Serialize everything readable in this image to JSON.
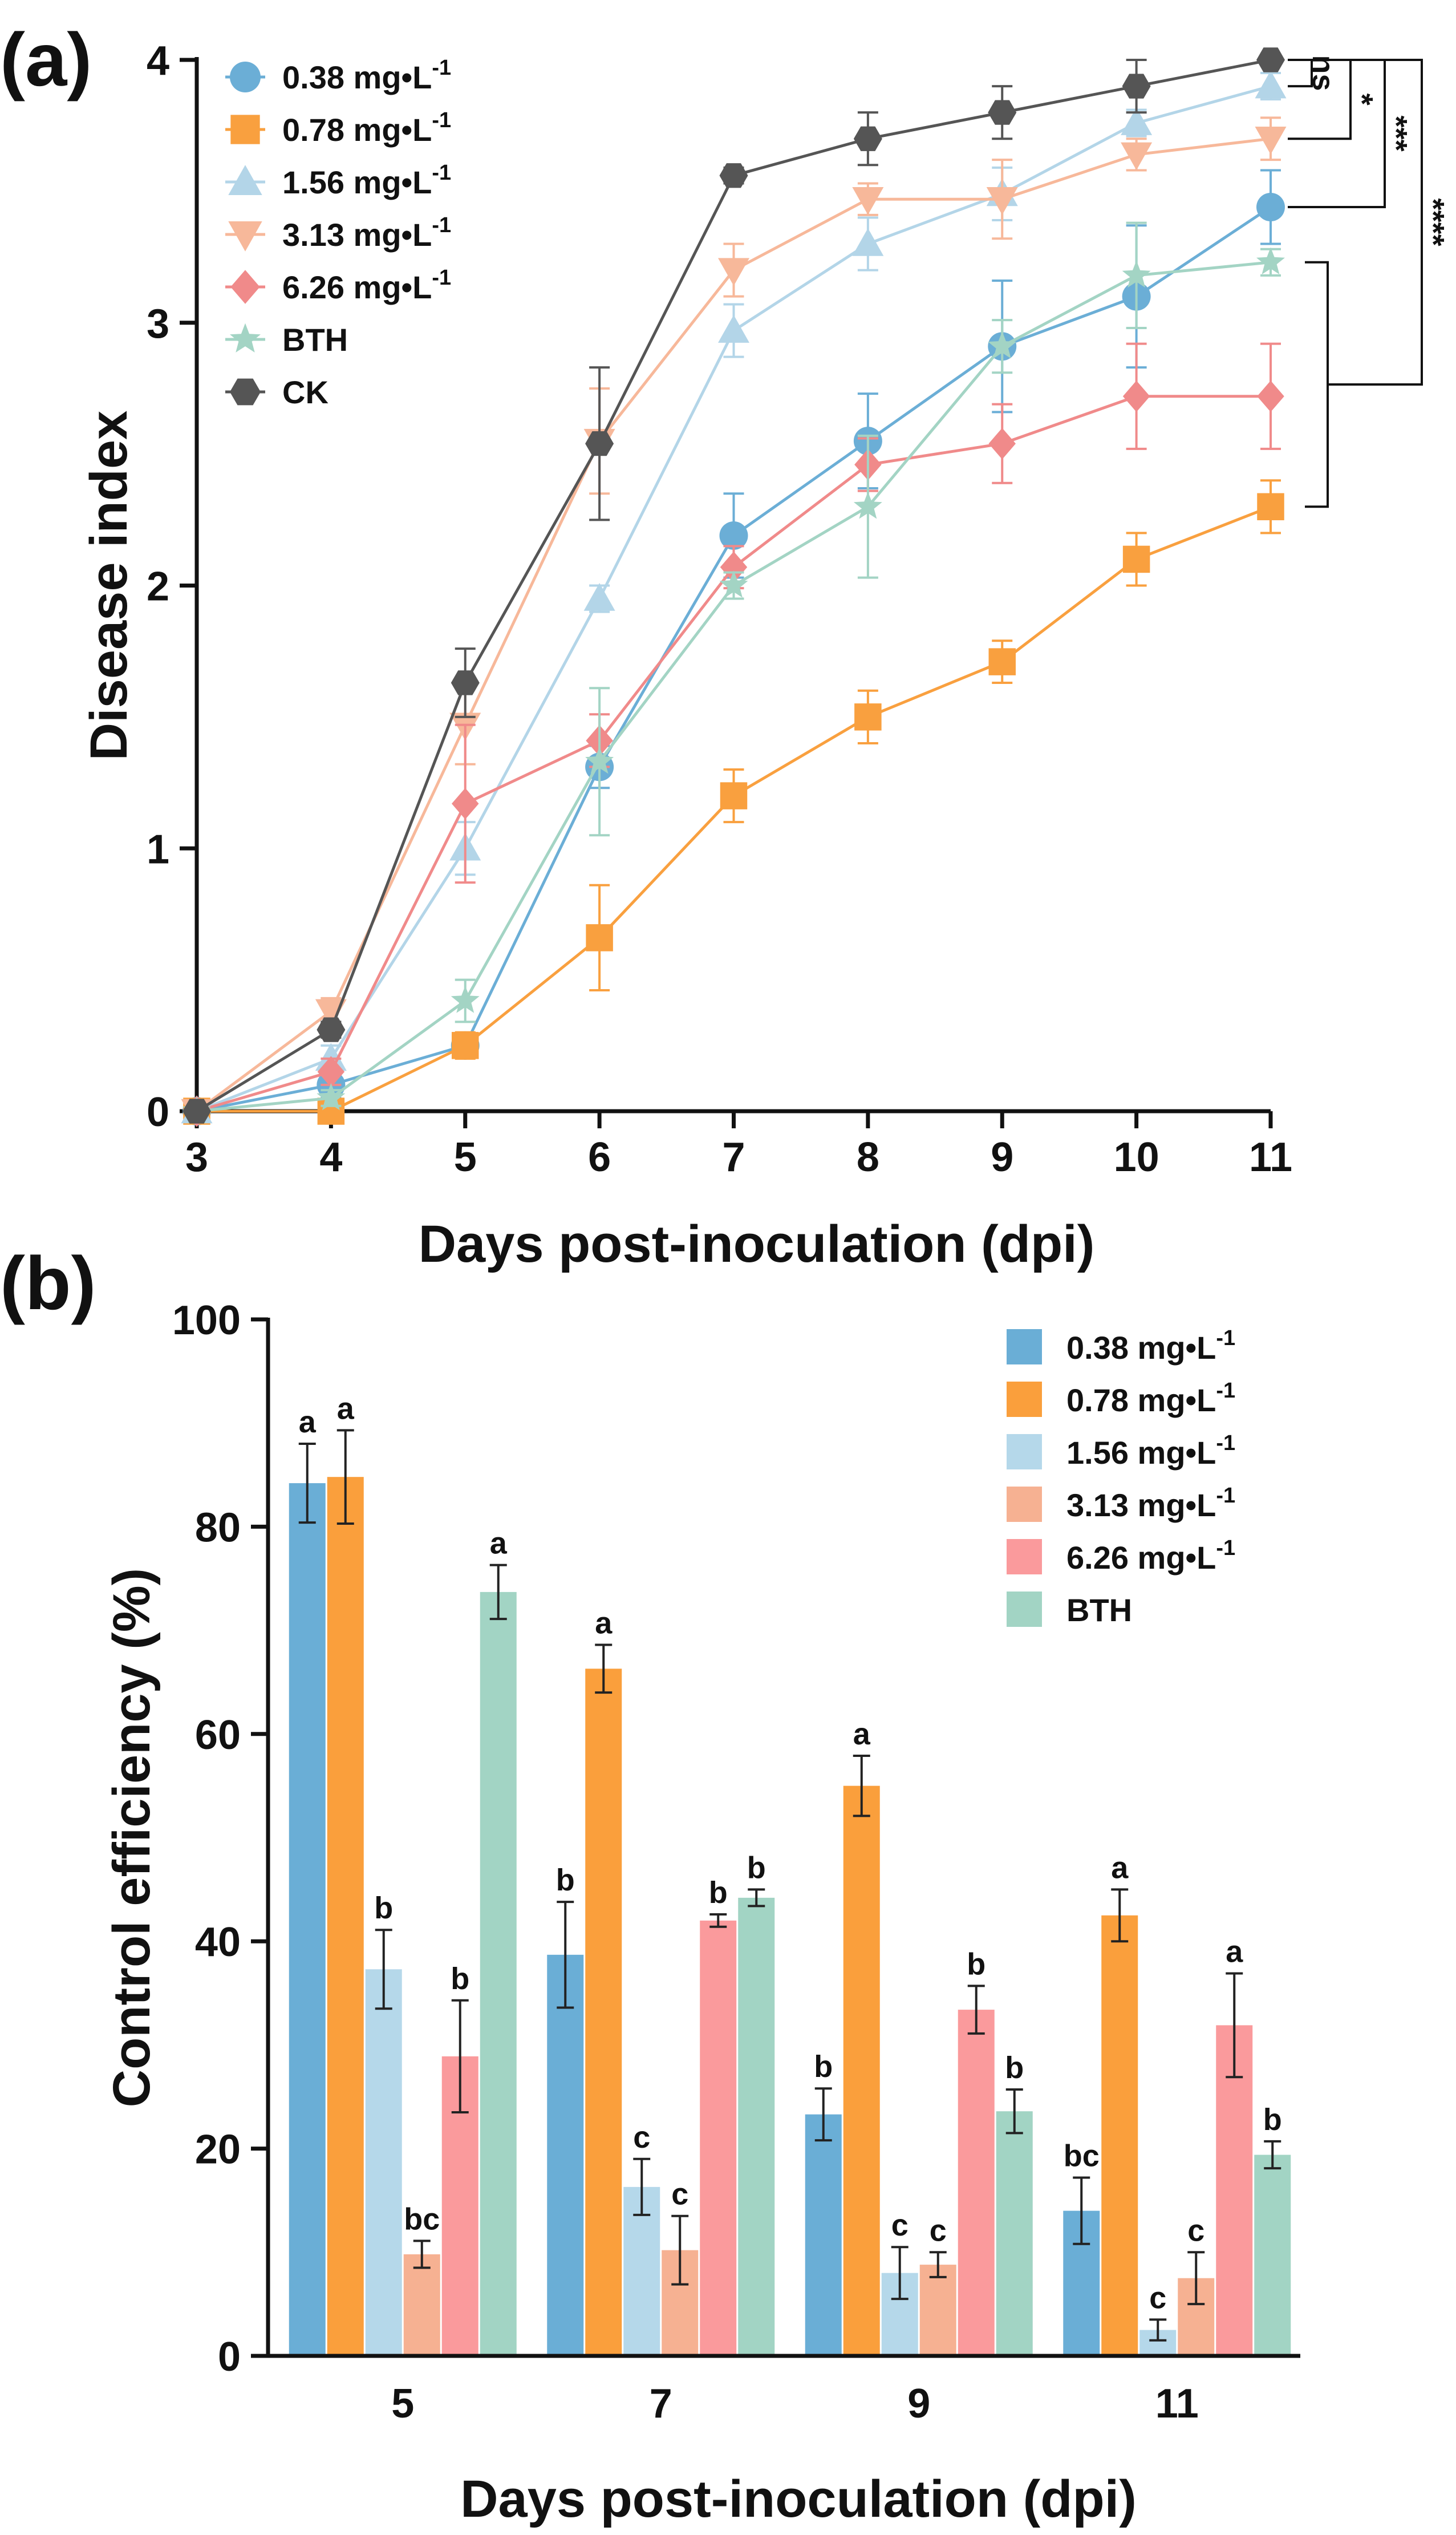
{
  "panel_a": {
    "label": "(a)",
    "chart_data": {
      "type": "line",
      "title": "",
      "xlabel": "Days post-inoculation (dpi)",
      "ylabel": "Disease index",
      "x": [
        3,
        4,
        5,
        6,
        7,
        8,
        9,
        10,
        11
      ],
      "xlim": [
        3,
        11
      ],
      "ylim": [
        0,
        4
      ],
      "xticks": [
        "3",
        "4",
        "5",
        "6",
        "7",
        "8",
        "9",
        "10",
        "11"
      ],
      "yticks": [
        "0",
        "1",
        "2",
        "3",
        "4"
      ],
      "grid": false,
      "legend_position": "top-left",
      "series": [
        {
          "name": "0.38 mg•L⁻¹",
          "color": "#6baed6",
          "marker": "circle",
          "values": [
            0,
            0.1,
            0.25,
            1.31,
            2.19,
            2.55,
            2.91,
            3.1,
            3.44
          ],
          "errors": [
            0,
            0.05,
            0.04,
            0.08,
            0.16,
            0.18,
            0.25,
            0.27,
            0.14
          ]
        },
        {
          "name": "0.78 mg•L⁻¹",
          "color": "#f9a03f",
          "marker": "square",
          "values": [
            0,
            0,
            0.25,
            0.66,
            1.2,
            1.5,
            1.71,
            2.1,
            2.3
          ],
          "errors": [
            0,
            0,
            0.05,
            0.2,
            0.1,
            0.1,
            0.08,
            0.1,
            0.1
          ]
        },
        {
          "name": "1.56 mg•L⁻¹",
          "color": "#b3d5e8",
          "marker": "triangle-up",
          "values": [
            0,
            0.2,
            1.0,
            1.95,
            2.97,
            3.3,
            3.49,
            3.76,
            3.9
          ],
          "errors": [
            0,
            0.05,
            0.1,
            0.05,
            0.1,
            0.1,
            0.1,
            0.05,
            0.05
          ]
        },
        {
          "name": "3.13 mg•L⁻¹",
          "color": "#f7b89a",
          "marker": "triangle-down",
          "values": [
            0,
            0.38,
            1.47,
            2.55,
            3.2,
            3.47,
            3.47,
            3.64,
            3.7
          ],
          "errors": [
            0,
            0.05,
            0.15,
            0.2,
            0.1,
            0.06,
            0.15,
            0.06,
            0.08
          ]
        },
        {
          "name": "6.26 mg•L⁻¹",
          "color": "#f08a8a",
          "marker": "diamond",
          "values": [
            0,
            0.15,
            1.17,
            1.41,
            2.07,
            2.46,
            2.54,
            2.72,
            2.72
          ],
          "errors": [
            0,
            0.05,
            0.3,
            0.1,
            0.08,
            0.1,
            0.15,
            0.2,
            0.2
          ]
        },
        {
          "name": "BTH",
          "color": "#a3d4c4",
          "marker": "star",
          "values": [
            0,
            0.05,
            0.42,
            1.33,
            2.0,
            2.3,
            2.91,
            3.18,
            3.23
          ],
          "errors": [
            0,
            0.03,
            0.08,
            0.28,
            0.05,
            0.27,
            0.1,
            0.2,
            0.05
          ]
        },
        {
          "name": "CK",
          "color": "#555555",
          "marker": "hexagon",
          "values": [
            0,
            0.31,
            1.63,
            2.54,
            3.56,
            3.7,
            3.8,
            3.9,
            4.0
          ],
          "errors": [
            0,
            0.03,
            0.13,
            0.29,
            0.03,
            0.1,
            0.1,
            0.1,
            0.02
          ]
        }
      ],
      "significance": [
        {
          "label": "ns",
          "compare": [
            "CK",
            "1.56 mg•L⁻¹"
          ]
        },
        {
          "label": "*",
          "compare": [
            "CK",
            "3.13 mg•L⁻¹"
          ]
        },
        {
          "label": "***",
          "compare": [
            "CK",
            "0.38 mg•L⁻¹"
          ]
        },
        {
          "label": "****",
          "compare": [
            "CK",
            "BTH, 6.26 mg•L⁻¹, 0.78 mg•L⁻¹"
          ]
        }
      ]
    }
  },
  "panel_b": {
    "label": "(b)",
    "chart_data": {
      "type": "bar",
      "title": "",
      "xlabel": "Days post-inoculation (dpi)",
      "ylabel": "Control efficiency (%)",
      "categories": [
        "5",
        "7",
        "9",
        "11"
      ],
      "ylim": [
        0,
        100
      ],
      "yticks": [
        "0",
        "20",
        "40",
        "60",
        "80",
        "100"
      ],
      "grid": false,
      "legend_position": "top-right",
      "series": [
        {
          "name": "0.38 mg•L⁻¹",
          "color": "#6aaed6",
          "values": [
            84.2,
            38.7,
            23.3,
            14.0
          ],
          "errors": [
            3.8,
            5.1,
            2.5,
            3.2
          ],
          "letters": [
            "a",
            "b",
            "b",
            "bc"
          ]
        },
        {
          "name": "0.78 mg•L⁻¹",
          "color": "#fa9f3c",
          "values": [
            84.8,
            66.3,
            55.0,
            42.5
          ],
          "errors": [
            4.5,
            2.3,
            2.9,
            2.5
          ],
          "letters": [
            "a",
            "a",
            "a",
            "a"
          ]
        },
        {
          "name": "1.56 mg•L⁻¹",
          "color": "#b5d8ea",
          "values": [
            37.3,
            16.3,
            8.0,
            2.5
          ],
          "errors": [
            3.8,
            2.7,
            2.5,
            1.0
          ],
          "letters": [
            "b",
            "c",
            "c",
            "c"
          ]
        },
        {
          "name": "3.13 mg•L⁻¹",
          "color": "#f6b192",
          "values": [
            9.8,
            10.2,
            8.8,
            7.5
          ],
          "errors": [
            1.3,
            3.3,
            1.2,
            2.5
          ],
          "letters": [
            "bc",
            "c",
            "c",
            "c"
          ]
        },
        {
          "name": "6.26 mg•L⁻¹",
          "color": "#fa9a9c",
          "values": [
            28.9,
            42.0,
            33.4,
            31.9
          ],
          "errors": [
            5.4,
            0.6,
            2.3,
            5.0
          ],
          "letters": [
            "b",
            "b",
            "b",
            "a"
          ]
        },
        {
          "name": "BTH",
          "color": "#a2d4c4",
          "values": [
            73.7,
            44.2,
            23.6,
            19.4
          ],
          "errors": [
            2.6,
            0.8,
            2.1,
            1.3
          ],
          "letters": [
            "a",
            "b",
            "b",
            "b"
          ]
        }
      ]
    }
  }
}
